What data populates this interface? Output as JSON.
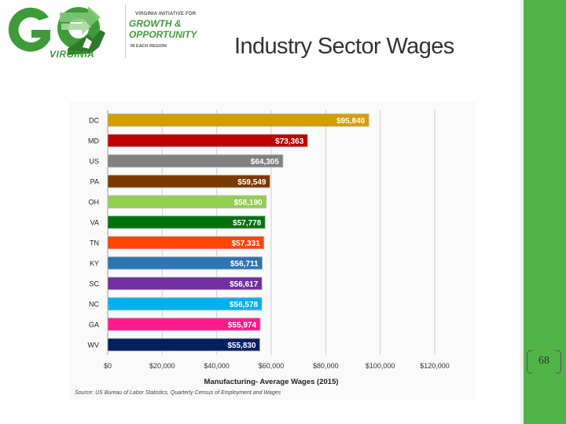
{
  "logo": {
    "go_text": "GO",
    "virginia_text": "VIRGINIA",
    "tagline_top": "VIRGINIA INITIATIVE FOR",
    "tagline_growth": "GROWTH &",
    "tagline_opportunity": "OPPORTUNITY",
    "tagline_bottom": "IN EACH REGION"
  },
  "slide": {
    "title": "Industry Sector Wages",
    "page_number": "68"
  },
  "source_note": "Source: US Bureau of Labor Statistics, Quarterly Census of Employment and Wages",
  "colors": {
    "sidebar_green": "#4fb348",
    "logo_green": "#3f9b3a"
  },
  "chart_data": {
    "type": "bar",
    "orientation": "horizontal",
    "title": "",
    "xlabel": "Manufacturing- Average Wages (2015)",
    "ylabel": "",
    "xlim": [
      0,
      120000
    ],
    "x_ticks": [
      0,
      20000,
      40000,
      60000,
      80000,
      100000,
      120000
    ],
    "x_tick_labels": [
      "$0",
      "$20,000",
      "$40,000",
      "$60,000",
      "$80,000",
      "$100,000",
      "$120,000"
    ],
    "grid": true,
    "categories": [
      "DC",
      "MD",
      "US",
      "PA",
      "OH",
      "VA",
      "TN",
      "KY",
      "SC",
      "NC",
      "GA",
      "WV"
    ],
    "values": [
      95840,
      73363,
      64305,
      59549,
      58190,
      57778,
      57331,
      56711,
      56617,
      56578,
      55974,
      55830
    ],
    "value_labels": [
      "$95,840",
      "$73,363",
      "$64,305",
      "$59,549",
      "$58,190",
      "$57,778",
      "$57,331",
      "$56,711",
      "$56,617",
      "$56,578",
      "$55,974",
      "$55,830"
    ],
    "bar_colors": [
      "#d39e00",
      "#c00000",
      "#808080",
      "#7b3a00",
      "#92d050",
      "#00720c",
      "#ff4500",
      "#2e75b6",
      "#7030a0",
      "#00b0f0",
      "#ff1a8c",
      "#002060"
    ]
  }
}
